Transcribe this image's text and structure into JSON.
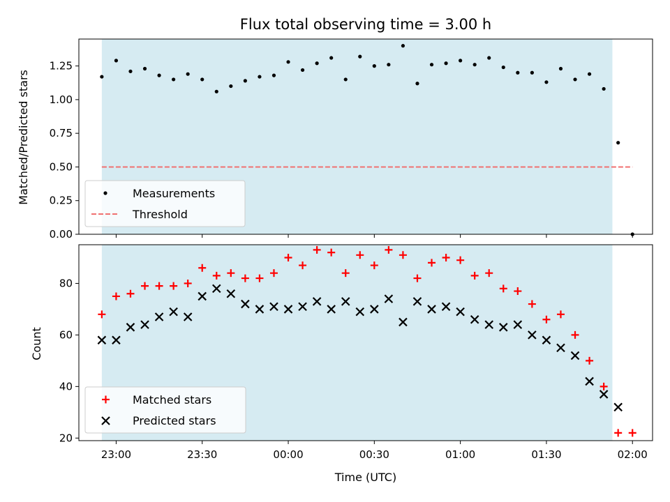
{
  "chart_data": [
    {
      "type": "scatter",
      "title": "Flux total observing time = 3.00 h",
      "xlabel": "",
      "ylabel": "Matched/Predicted stars",
      "ylim": [
        0,
        1.45
      ],
      "yticks": [
        "0.00",
        "0.25",
        "0.50",
        "0.75",
        "1.00",
        "1.25"
      ],
      "x_range": [
        "22:47",
        "02:07"
      ],
      "shaded_interval": [
        "22:55",
        "01:53"
      ],
      "legend_position": "lower-left",
      "grid": false,
      "series": [
        {
          "name": "Measurements",
          "marker": "dot",
          "color": "#000000",
          "x": [
            "22:55",
            "22:60",
            "23:05",
            "23:10",
            "23:15",
            "23:20",
            "23:25",
            "23:30",
            "23:35",
            "23:40",
            "23:45",
            "23:50",
            "23:55",
            "24:00",
            "24:05",
            "24:10",
            "24:15",
            "24:20",
            "24:25",
            "24:30",
            "24:35",
            "24:40",
            "24:45",
            "24:50",
            "24:55",
            "25:00",
            "25:05",
            "25:10",
            "25:15",
            "25:20",
            "25:25",
            "25:30",
            "25:35",
            "25:40",
            "25:45",
            "25:50",
            "25:55",
            "26:00"
          ],
          "y": [
            1.17,
            1.29,
            1.21,
            1.23,
            1.18,
            1.15,
            1.19,
            1.15,
            1.06,
            1.1,
            1.14,
            1.17,
            1.18,
            1.28,
            1.22,
            1.27,
            1.31,
            1.15,
            1.32,
            1.25,
            1.26,
            1.4,
            1.12,
            1.26,
            1.27,
            1.29,
            1.26,
            1.31,
            1.24,
            1.2,
            1.2,
            1.13,
            1.23,
            1.15,
            1.19,
            1.08,
            0.68,
            0.0
          ]
        },
        {
          "name": "Threshold",
          "style": "dashed",
          "color": "#f07070",
          "x": [
            "22:55",
            "26:00"
          ],
          "y": [
            0.5,
            0.5
          ]
        }
      ]
    },
    {
      "type": "scatter",
      "title": "",
      "xlabel": "Time (UTC)",
      "ylabel": "Count",
      "ylim": [
        19,
        95
      ],
      "yticks": [
        "20",
        "40",
        "60",
        "80"
      ],
      "x_range": [
        "22:47",
        "02:07"
      ],
      "xticks": [
        "23:00",
        "23:30",
        "00:00",
        "00:30",
        "01:00",
        "01:30",
        "02:00"
      ],
      "shaded_interval": [
        "22:55",
        "01:53"
      ],
      "legend_position": "lower-left",
      "grid": false,
      "series": [
        {
          "name": "Matched stars",
          "marker": "plus",
          "color": "#ff0000",
          "x": [
            "22:55",
            "23:00",
            "23:05",
            "23:10",
            "23:15",
            "23:20",
            "23:25",
            "23:30",
            "23:35",
            "23:40",
            "23:45",
            "23:50",
            "23:55",
            "24:00",
            "24:05",
            "24:10",
            "24:15",
            "24:20",
            "24:25",
            "24:30",
            "24:35",
            "24:40",
            "24:45",
            "24:50",
            "24:55",
            "25:00",
            "25:05",
            "25:10",
            "25:15",
            "25:20",
            "25:25",
            "25:30",
            "25:35",
            "25:40",
            "25:45",
            "25:50",
            "25:55",
            "26:00"
          ],
          "y": [
            68,
            75,
            76,
            79,
            79,
            79,
            80,
            86,
            83,
            84,
            82,
            82,
            84,
            90,
            87,
            93,
            92,
            84,
            91,
            87,
            93,
            91,
            82,
            88,
            90,
            89,
            83,
            84,
            78,
            77,
            72,
            66,
            68,
            60,
            50,
            40,
            22,
            22
          ]
        },
        {
          "name": "Predicted stars",
          "marker": "x",
          "color": "#000000",
          "x": [
            "22:55",
            "23:00",
            "23:05",
            "23:10",
            "23:15",
            "23:20",
            "23:25",
            "23:30",
            "23:35",
            "23:40",
            "23:45",
            "23:50",
            "23:55",
            "24:00",
            "24:05",
            "24:10",
            "24:15",
            "24:20",
            "24:25",
            "24:30",
            "24:35",
            "24:40",
            "24:45",
            "24:50",
            "24:55",
            "25:00",
            "25:05",
            "25:10",
            "25:15",
            "25:20",
            "25:25",
            "25:30",
            "25:35",
            "25:40",
            "25:45",
            "25:50",
            "25:55"
          ],
          "y": [
            58,
            58,
            63,
            64,
            67,
            69,
            67,
            75,
            78,
            76,
            72,
            70,
            71,
            70,
            71,
            73,
            70,
            73,
            69,
            70,
            74,
            65,
            73,
            70,
            71,
            69,
            66,
            64,
            63,
            64,
            60,
            58,
            55,
            52,
            42,
            37,
            32
          ]
        }
      ]
    }
  ],
  "colors": {
    "shade": "#add8e6",
    "matched": "#ff0000",
    "predicted": "#000000",
    "threshold": "#f07070"
  }
}
